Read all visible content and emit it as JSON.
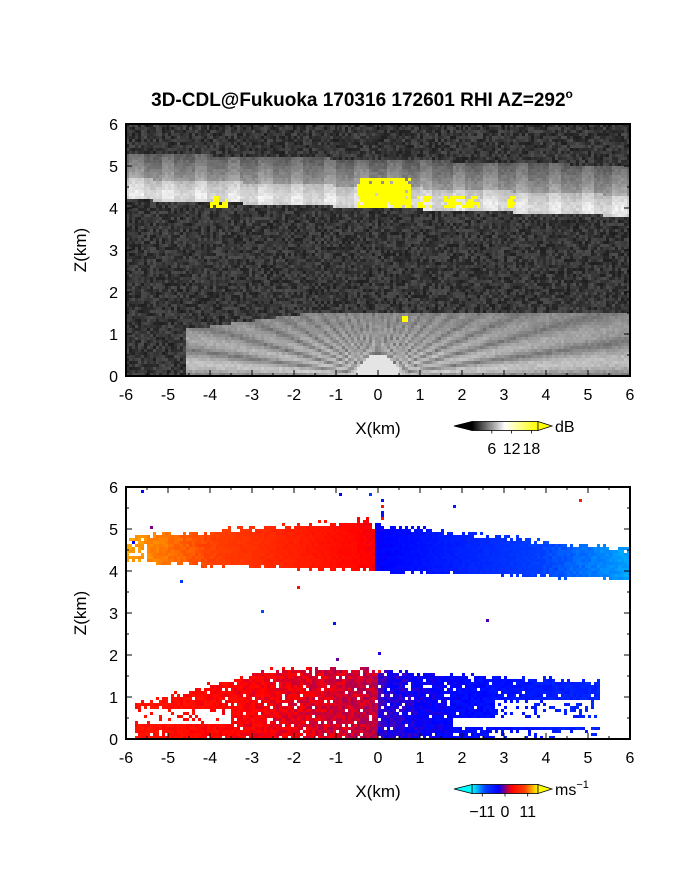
{
  "title": "3D-CDL@Fukuoka 170316 172601 RHI AZ=292",
  "title_degree": "o",
  "chart_data": [
    {
      "type": "heatmap",
      "variable": "dB",
      "xlabel": "X(km)",
      "ylabel": "Z(km)",
      "xlim": [
        -6,
        6
      ],
      "ylim": [
        0,
        6
      ],
      "x_ticks": [
        "-6",
        "-5",
        "-4",
        "-3",
        "-2",
        "-1",
        "0",
        "1",
        "2",
        "3",
        "4",
        "5",
        "6"
      ],
      "y_ticks": [
        "0",
        "1",
        "2",
        "3",
        "4",
        "5",
        "6"
      ],
      "grid": false,
      "background": "noise (dark grey)",
      "features": [
        {
          "name": "upper layer",
          "z_base": [
            4.2,
            3.8
          ],
          "z_top": [
            5.3,
            5.0
          ],
          "x_range": [
            -6,
            6
          ]
        },
        {
          "name": "lower layer",
          "z_top": 1.5,
          "x_range": [
            -4.5,
            6
          ]
        },
        {
          "name": "saturated patch",
          "x_range": [
            -0.5,
            0.8
          ],
          "z_range": [
            4.0,
            4.7
          ]
        }
      ],
      "colorbar": {
        "label": "dB",
        "tick_labels": [
          "6",
          "12",
          "18"
        ],
        "ticks": [
          6,
          12,
          18
        ],
        "range": [
          0,
          20
        ],
        "colors": [
          "#000000",
          "#ffffff",
          "#ffff00"
        ]
      }
    },
    {
      "type": "heatmap",
      "variable": "Doppler velocity",
      "xlabel": "X(km)",
      "ylabel": "Z(km)",
      "xlim": [
        -6,
        6
      ],
      "ylim": [
        0,
        6
      ],
      "x_ticks": [
        "-6",
        "-5",
        "-4",
        "-3",
        "-2",
        "-1",
        "0",
        "1",
        "2",
        "3",
        "4",
        "5",
        "6"
      ],
      "y_ticks": [
        "0",
        "1",
        "2",
        "3",
        "4",
        "5",
        "6"
      ],
      "grid": false,
      "features": [
        {
          "name": "upper layer",
          "sign_change_x": -0.1,
          "x_range": [
            -6,
            6
          ],
          "z_base": [
            4.2,
            3.8
          ],
          "z_top": [
            5.2,
            4.5
          ]
        },
        {
          "name": "lower layer",
          "sign_change_x": 0.0,
          "x_range": [
            -5.8,
            5.3
          ],
          "z_top": 1.6
        }
      ],
      "colorbar": {
        "label": "ms",
        "label_exponent": "−1",
        "tick_labels": [
          "−11",
          "0",
          "11"
        ],
        "ticks": [
          -11,
          0,
          11
        ],
        "range": [
          -16,
          16
        ],
        "colors": [
          "#00ffff",
          "#0040ff",
          "#0000ff",
          "#ff0000",
          "#ff4000",
          "#ffff00"
        ]
      }
    }
  ]
}
